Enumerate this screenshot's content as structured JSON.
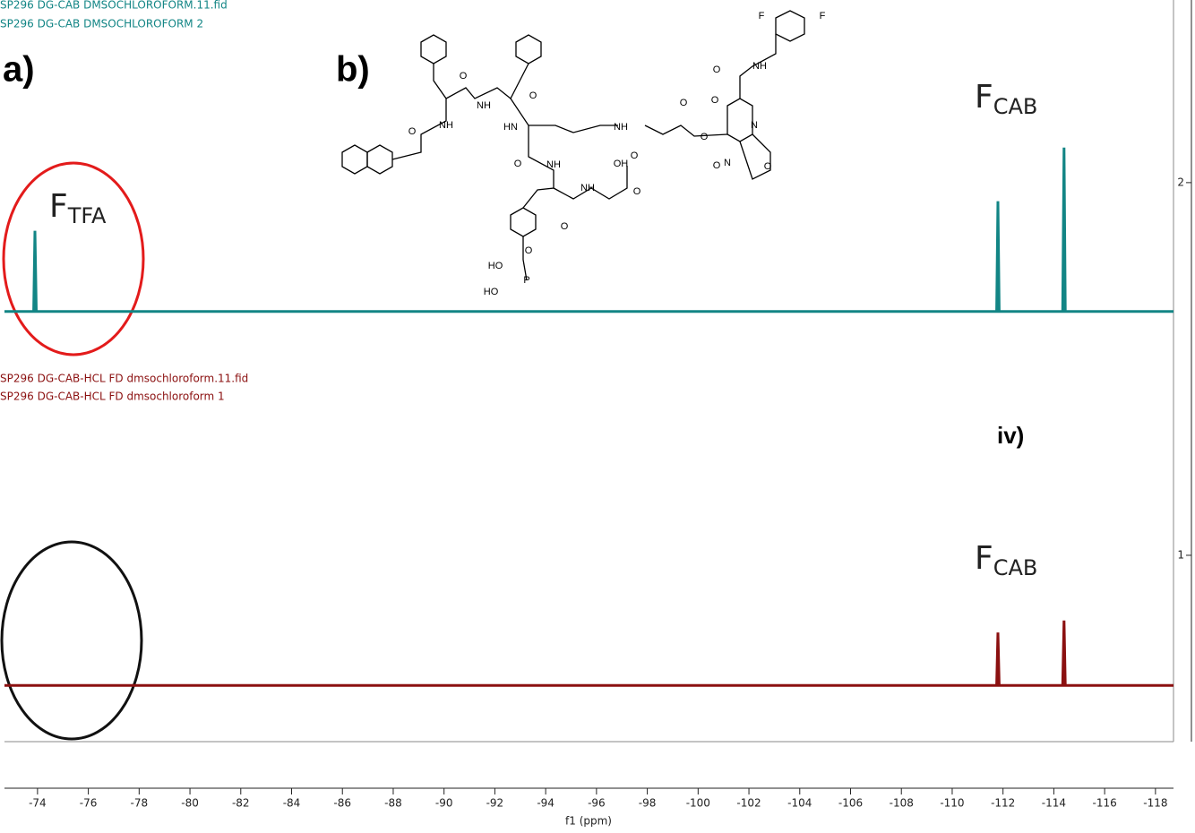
{
  "chart_data": {
    "type": "line",
    "x_label": "f1 (ppm)",
    "xlim": [
      -72.7,
      -118.71
    ],
    "xticks": [
      -74,
      -76,
      -78,
      -80,
      -82,
      -84,
      -86,
      -88,
      -90,
      -92,
      -94,
      -96,
      -98,
      -100,
      -102,
      -104,
      -106,
      -108,
      -110,
      -112,
      -114,
      -116,
      -118
    ],
    "ylim": [
      0.5,
      2.49
    ],
    "yticks": [
      1,
      2
    ],
    "series": [
      {
        "name": "SP296 DG-CAB DMSOCHLOROFORM.11.fid",
        "subtitle": "SP296 DG-CAB DMSOCHLOROFORM 2",
        "color": "#128585",
        "x": [
          -72.7,
          -73.85,
          -73.9,
          -73.95,
          -111.75,
          -111.8,
          -111.85,
          -114.35,
          -114.4,
          -114.45,
          -118.71
        ],
        "values": [
          1.654,
          1.654,
          1.871,
          1.654,
          1.654,
          1.95,
          1.654,
          1.654,
          2.094,
          1.654,
          1.654
        ]
      },
      {
        "name": "SP296 DG-CAB-HCL FD dmsochloroform.11.fid",
        "subtitle": "SP296 DG-CAB-HCL FD dmsochloroform 1",
        "color": "#8b1010",
        "x": [
          -72.7,
          -111.75,
          -111.8,
          -111.85,
          -114.35,
          -114.4,
          -114.45,
          -118.71
        ],
        "values": [
          0.651,
          0.651,
          0.793,
          0.651,
          0.651,
          0.825,
          0.651,
          0.651
        ]
      }
    ],
    "annotations": {
      "panel_a": "a)",
      "panel_b": "b)",
      "panel_iv": "iv)",
      "peak_tfa": {
        "text": "F",
        "subscript": "TFA"
      },
      "peak_cab_top": {
        "text": "F",
        "subscript": "CAB"
      },
      "peak_cab_bottom": {
        "text": "F",
        "subscript": "CAB"
      }
    },
    "structure_labels": [
      "F",
      "F",
      "NH",
      "O",
      "O",
      "N",
      "O",
      "O",
      "N",
      "O",
      "O",
      "O",
      "NH",
      "O",
      "NH",
      "HN",
      "O",
      "NH",
      "O",
      "NH",
      "OH",
      "O",
      "NH",
      "O",
      "O",
      "HO",
      "P",
      "O",
      "HO"
    ]
  }
}
